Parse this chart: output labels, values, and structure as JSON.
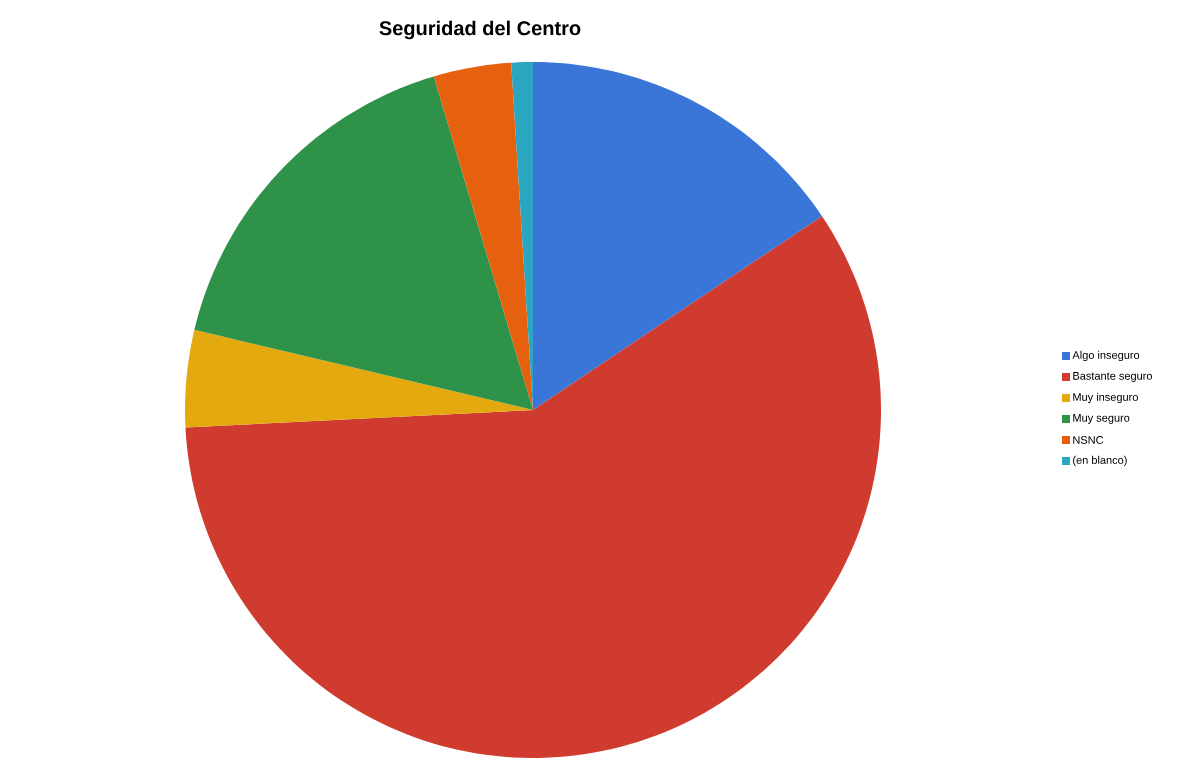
{
  "chart_data": {
    "type": "pie",
    "title": "Seguridad del Centro",
    "categories": [
      "Algo inseguro",
      "Bastante seguro",
      "Muy inseguro",
      "Muy seguro",
      "NSNC",
      "(en blanco)"
    ],
    "values": [
      15.6,
      58.6,
      4.5,
      16.7,
      3.6,
      1.0
    ],
    "colors": [
      "#3a75d8",
      "#cf3b2e",
      "#e3a90e",
      "#2e9248",
      "#e5600f",
      "#2aa6c0"
    ],
    "legend": "right"
  }
}
